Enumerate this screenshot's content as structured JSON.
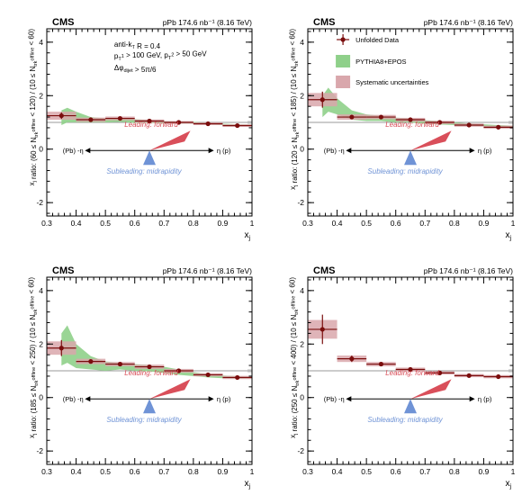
{
  "figure": {
    "legend": {
      "data_label": "Unfolded Data",
      "mc_label": "PYTHIA8+EPOS",
      "syst_label": "Systematic uncertainties"
    },
    "cut_lines": [
      "anti-k_T R = 0.4",
      "p_T^1 > 100 GeV, p_T^2 > 50 GeV",
      "Δφ_dijet > 5π/6"
    ],
    "diagram": {
      "leading": "Leading: forward",
      "subleading": "Subleading: midrapidity",
      "left_end": "(Pb) -η",
      "right_end": "η (p)"
    },
    "colors": {
      "data": "#7a0d0d",
      "mc_fill": "#8fd08a",
      "syst_fill": "#d9a7ac",
      "leading": "#d94f5a",
      "subleading": "#6f93d6"
    }
  },
  "chart_data": [
    {
      "type": "scatter",
      "experiment": "CMS",
      "lumi": "pPb 174.6 nb⁻¹ (8.16 TeV)",
      "xlabel": "x_j",
      "ylabel": "x_j ratio: (60 ≤ N_trk^offline < 120) / (10 ≤ N_trk^offline < 60)",
      "xlim": [
        0.3,
        1.0
      ],
      "ylim": [
        -2.5,
        4.5
      ],
      "x": [
        0.35,
        0.45,
        0.55,
        0.65,
        0.75,
        0.85,
        0.95
      ],
      "data": [
        1.25,
        1.1,
        1.15,
        1.05,
        1.0,
        0.95,
        0.88
      ],
      "stat_err": [
        0.12,
        0.06,
        0.05,
        0.05,
        0.05,
        0.05,
        0.05
      ],
      "syst_err": [
        0.15,
        0.08,
        0.07,
        0.06,
        0.05,
        0.05,
        0.05
      ],
      "mc_x": [
        0.35,
        0.37,
        0.4,
        0.45,
        0.5,
        0.55,
        0.6,
        0.65,
        0.7,
        0.75,
        0.8,
        0.85,
        0.9,
        0.95,
        1.0
      ],
      "mc_low": [
        0.9,
        1.0,
        1.0,
        1.0,
        1.0,
        1.02,
        0.98,
        0.98,
        0.96,
        0.95,
        0.95,
        0.93,
        0.9,
        0.88,
        0.87
      ],
      "mc_high": [
        1.45,
        1.55,
        1.4,
        1.2,
        1.15,
        1.18,
        1.12,
        1.08,
        1.05,
        1.03,
        1.02,
        0.98,
        0.95,
        0.93,
        0.92
      ],
      "show_cuts": true,
      "show_legend": false
    },
    {
      "type": "scatter",
      "experiment": "CMS",
      "lumi": "pPb 174.6 nb⁻¹ (8.16 TeV)",
      "xlabel": "x_j",
      "ylabel": "x_j ratio: (120 ≤ N_trk^offline < 185) / (10 ≤ N_trk^offline < 60)",
      "xlim": [
        0.3,
        1.0
      ],
      "ylim": [
        -2.5,
        4.5
      ],
      "x": [
        0.35,
        0.45,
        0.55,
        0.65,
        0.75,
        0.85,
        0.95
      ],
      "data": [
        1.85,
        1.2,
        1.2,
        1.1,
        1.0,
        0.9,
        0.82
      ],
      "stat_err": [
        0.3,
        0.08,
        0.06,
        0.06,
        0.06,
        0.06,
        0.07
      ],
      "syst_err": [
        0.25,
        0.1,
        0.08,
        0.07,
        0.06,
        0.06,
        0.06
      ],
      "mc_x": [
        0.35,
        0.37,
        0.4,
        0.45,
        0.5,
        0.55,
        0.6,
        0.65,
        0.7,
        0.75,
        0.8,
        0.85,
        0.9,
        0.95,
        1.0
      ],
      "mc_low": [
        1.2,
        1.4,
        1.3,
        1.1,
        1.05,
        1.05,
        1.0,
        1.0,
        0.95,
        0.92,
        0.9,
        0.88,
        0.86,
        0.84,
        0.82
      ],
      "mc_high": [
        2.0,
        2.3,
        1.9,
        1.45,
        1.3,
        1.25,
        1.18,
        1.15,
        1.08,
        1.05,
        1.0,
        0.96,
        0.93,
        0.9,
        0.88
      ],
      "show_cuts": false,
      "show_legend": true
    },
    {
      "type": "scatter",
      "experiment": "CMS",
      "lumi": "pPb 174.6 nb⁻¹ (8.16 TeV)",
      "xlabel": "x_j",
      "ylabel": "x_j ratio: (185 ≤ N_trk^offline < 250) / (10 ≤ N_trk^offline < 60)",
      "xlim": [
        0.3,
        1.0
      ],
      "ylim": [
        -2.5,
        4.5
      ],
      "x": [
        0.35,
        0.45,
        0.55,
        0.65,
        0.75,
        0.85,
        0.95
      ],
      "data": [
        1.85,
        1.35,
        1.25,
        1.15,
        1.0,
        0.85,
        0.75
      ],
      "stat_err": [
        0.3,
        0.08,
        0.06,
        0.06,
        0.06,
        0.06,
        0.07
      ],
      "syst_err": [
        0.25,
        0.1,
        0.08,
        0.08,
        0.07,
        0.06,
        0.06
      ],
      "mc_x": [
        0.35,
        0.37,
        0.4,
        0.45,
        0.5,
        0.55,
        0.6,
        0.65,
        0.7,
        0.75,
        0.8,
        0.85,
        0.9,
        0.95,
        1.0
      ],
      "mc_low": [
        1.2,
        1.3,
        1.1,
        1.05,
        1.0,
        1.05,
        1.0,
        0.98,
        0.92,
        0.85,
        0.8,
        0.75,
        0.72,
        0.7,
        0.7
      ],
      "mc_high": [
        2.4,
        2.7,
        2.0,
        1.55,
        1.35,
        1.3,
        1.25,
        1.22,
        1.15,
        1.05,
        0.95,
        0.88,
        0.82,
        0.8,
        0.78
      ],
      "show_cuts": false,
      "show_legend": false
    },
    {
      "type": "scatter",
      "experiment": "CMS",
      "lumi": "pPb 174.6 nb⁻¹ (8.16 TeV)",
      "xlabel": "x_j",
      "ylabel": "x_j ratio: (250 ≤ N_trk^offline < 400) / (10 ≤ N_trk^offline < 60)",
      "xlim": [
        0.3,
        1.0
      ],
      "ylim": [
        -2.5,
        4.5
      ],
      "x": [
        0.35,
        0.45,
        0.55,
        0.65,
        0.75,
        0.85,
        0.95
      ],
      "data": [
        2.55,
        1.45,
        1.25,
        1.05,
        0.92,
        0.82,
        0.78
      ],
      "stat_err": [
        0.55,
        0.12,
        0.08,
        0.07,
        0.07,
        0.07,
        0.08
      ],
      "syst_err": [
        0.35,
        0.12,
        0.08,
        0.07,
        0.06,
        0.06,
        0.06
      ],
      "mc_x": [],
      "mc_low": [],
      "mc_high": [],
      "show_cuts": false,
      "show_legend": false
    }
  ]
}
